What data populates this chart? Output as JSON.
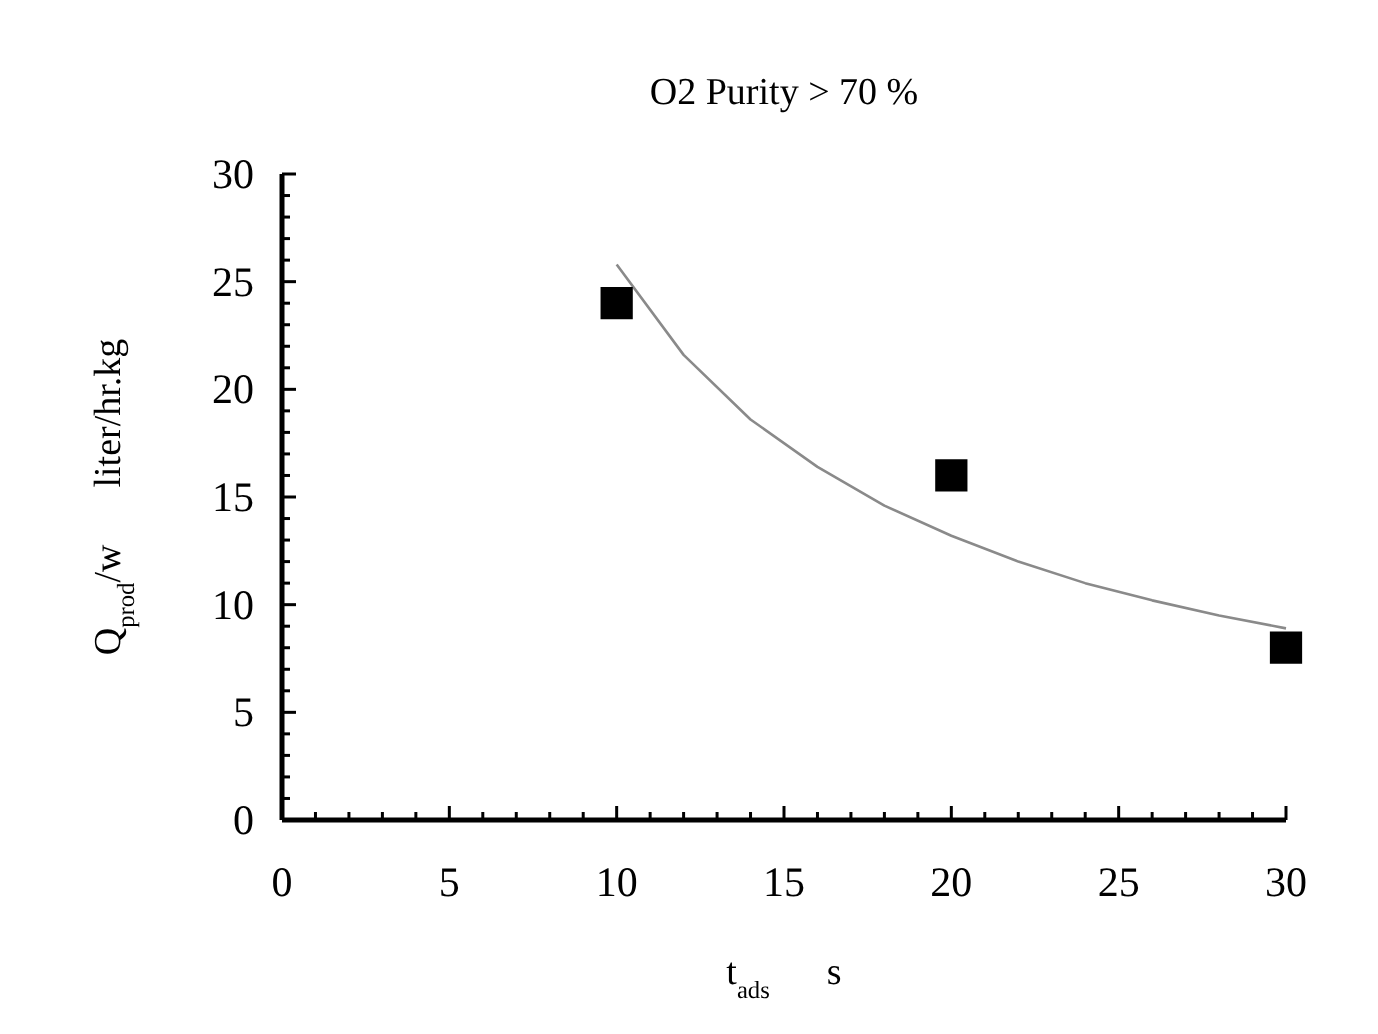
{
  "chart_data": {
    "type": "scatter",
    "title": "O2 Purity > 70 %",
    "xlabel": "t$_{ads}$      s",
    "ylabel": "Q$_{prod}$/w      liter/hr.kg",
    "xlim": [
      0,
      30
    ],
    "ylim": [
      0,
      30
    ],
    "xticks": [
      0,
      {
        "value": 1,
        "label": null
      },
      {
        "value": 2,
        "label": null
      },
      {
        "value": 3,
        "label": null
      },
      {
        "value": 4,
        "label": null
      },
      5,
      {
        "value": 6,
        "label": null
      },
      {
        "value": 7,
        "label": null
      },
      {
        "value": 8,
        "label": null
      },
      {
        "value": 9,
        "label": null
      },
      10,
      {
        "value": 11,
        "label": null
      },
      {
        "value": 12,
        "label": null
      },
      {
        "value": 13,
        "label": null
      },
      {
        "value": 14,
        "label": null
      },
      15,
      {
        "value": 16,
        "label": null
      },
      {
        "value": 17,
        "label": null
      },
      {
        "value": 18,
        "label": null
      },
      {
        "value": 19,
        "label": null
      },
      20,
      {
        "value": 21,
        "label": null
      },
      {
        "value": 22,
        "label": null
      },
      {
        "value": 23,
        "label": null
      },
      {
        "value": 24,
        "label": null
      },
      25,
      {
        "value": 26,
        "label": null
      },
      {
        "value": 27,
        "label": null
      },
      {
        "value": 28,
        "label": null
      },
      {
        "value": 29,
        "label": null
      },
      30
    ],
    "yticks": [
      0,
      {
        "value": 1,
        "label": null
      },
      {
        "value": 2,
        "label": null
      },
      {
        "value": 3,
        "label": null
      },
      {
        "value": 4,
        "label": null
      },
      5,
      {
        "value": 6,
        "label": null
      },
      {
        "value": 7,
        "label": null
      },
      {
        "value": 8,
        "label": null
      },
      {
        "value": 9,
        "label": null
      },
      10,
      {
        "value": 11,
        "label": null
      },
      {
        "value": 12,
        "label": null
      },
      {
        "value": 13,
        "label": null
      },
      {
        "value": 14,
        "label": null
      },
      15,
      {
        "value": 16,
        "label": null
      },
      {
        "value": 17,
        "label": null
      },
      {
        "value": 18,
        "label": null
      },
      {
        "value": 19,
        "label": null
      },
      20,
      {
        "value": 21,
        "label": null
      },
      {
        "value": 22,
        "label": null
      },
      {
        "value": 23,
        "label": null
      },
      {
        "value": 24,
        "label": null
      },
      25,
      {
        "value": 26,
        "label": null
      },
      {
        "value": 27,
        "label": null
      },
      {
        "value": 28,
        "label": null
      },
      {
        "value": 29,
        "label": null
      },
      30
    ],
    "marker": "square",
    "series": [
      {
        "type": "line",
        "marker": "none",
        "color": "#8a8a8a",
        "x": [
          10,
          12,
          14,
          16,
          18,
          20,
          22,
          24,
          26,
          28,
          30
        ],
        "values": [
          25.8,
          21.6,
          18.6,
          16.4,
          14.6,
          13.2,
          12.0,
          11.0,
          10.2,
          9.5,
          8.9
        ]
      },
      {
        "type": "scatter",
        "color": "#000000",
        "x": [
          10,
          20,
          30
        ],
        "values": [
          24,
          16,
          8
        ]
      }
    ]
  }
}
